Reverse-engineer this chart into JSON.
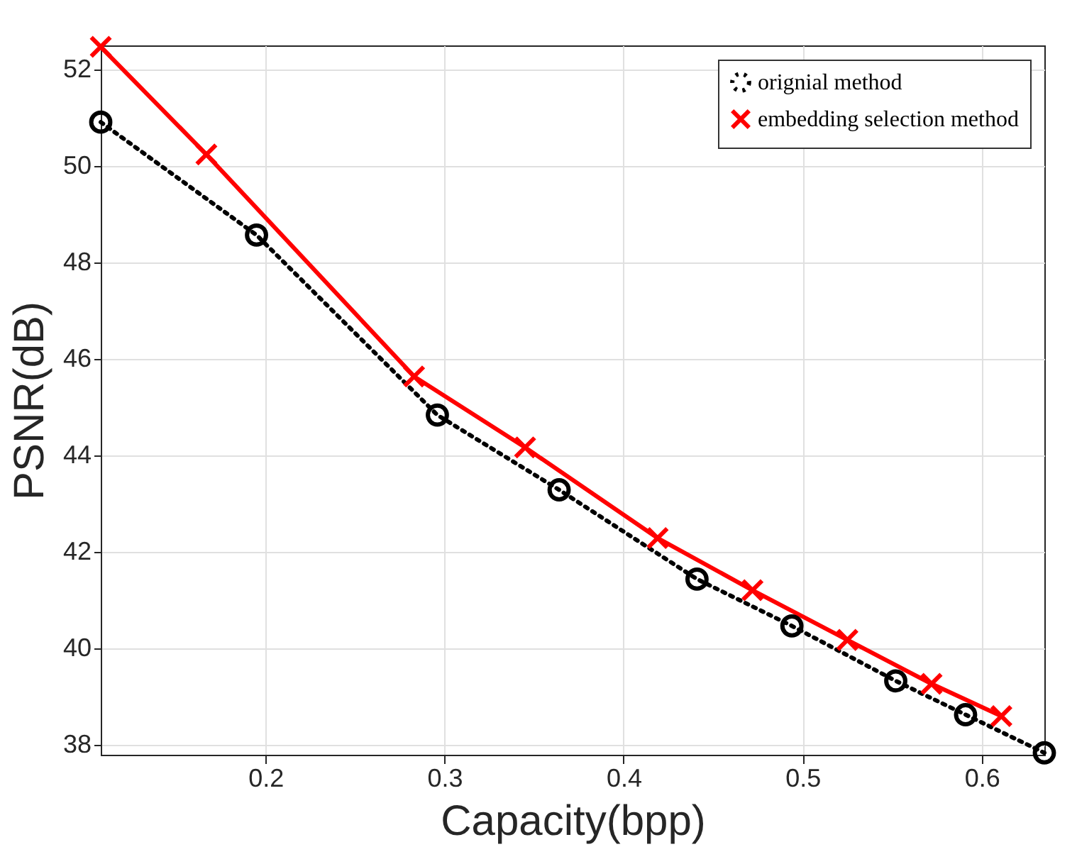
{
  "chart_data": {
    "type": "line",
    "xlabel": "Capacity(bpp)",
    "ylabel": "PSNR(dB)",
    "xlim": [
      0.108,
      0.635
    ],
    "xticks": [
      0.2,
      0.3,
      0.4,
      0.5,
      0.6
    ],
    "ylim": [
      37.8,
      52.5
    ],
    "yticks": [
      38,
      40,
      42,
      44,
      46,
      48,
      50,
      52
    ],
    "grid": true,
    "legend": "top right",
    "series": [
      {
        "name": "orignial method",
        "color": "#000000",
        "marker": "circle",
        "line_style": "dotted",
        "x": [
          0.108,
          0.195,
          0.296,
          0.364,
          0.441,
          0.494,
          0.552,
          0.591,
          0.635
        ],
        "values": [
          50.91,
          48.57,
          44.84,
          43.29,
          41.44,
          40.47,
          39.33,
          38.63,
          37.84
        ]
      },
      {
        "name": "embedding selection method",
        "color": "#ff0000",
        "marker": "cross",
        "line_style": "solid",
        "x": [
          0.108,
          0.167,
          0.283,
          0.345,
          0.419,
          0.472,
          0.525,
          0.572,
          0.611
        ],
        "values": [
          52.47,
          50.24,
          45.64,
          44.17,
          42.29,
          41.21,
          40.18,
          39.27,
          38.6
        ]
      }
    ]
  }
}
